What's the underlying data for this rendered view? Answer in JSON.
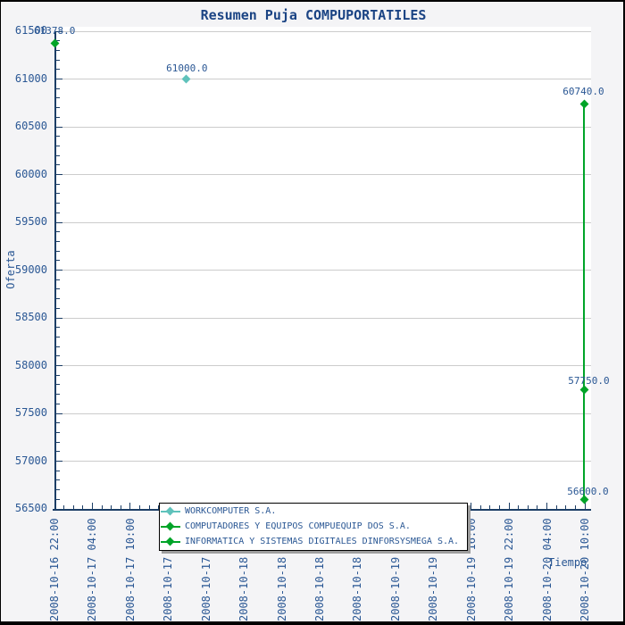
{
  "title": "Resumen Puja COMPUPORTATILES",
  "colors": {
    "navy_text": "#2a5794",
    "title_navy": "#1b4484",
    "axis_line": "#1c3e66",
    "gridline": "#cccccc",
    "plot_bg": "#ffffff",
    "page_bg": "#f4f4f6",
    "teal_series": "#5fc2bb",
    "green_series": "#00a428",
    "legend_shadow": "#9e9e9e"
  },
  "axes": {
    "y": {
      "label": "Oferta",
      "min": 56500,
      "max": 61500,
      "major_step": 500,
      "minor_step": 100,
      "ticks": [
        61500,
        61000,
        60500,
        60000,
        59500,
        59000,
        58500,
        58000,
        57500,
        57000,
        56500
      ]
    },
    "x": {
      "label": "Tiempo",
      "major_step_hours": 6,
      "minor_per_major": 4,
      "ticks": [
        "2008-10-16 22:00",
        "2008-10-17 04:00",
        "2008-10-17 10:00",
        "2008-10-17 16:00",
        "2008-10-17 22:00",
        "2008-10-18 04:00",
        "2008-10-18 10:00",
        "2008-10-18 16:00",
        "2008-10-18 22:00",
        "2008-10-19 04:00",
        "2008-10-19 10:00",
        "2008-10-19 16:00",
        "2008-10-19 22:00",
        "2008-10-20 04:00",
        "2008-10-20 10:00"
      ]
    }
  },
  "legend": {
    "items": [
      {
        "label": "WORKCOMPUTER S.A.",
        "color": "#5fc2bb"
      },
      {
        "label": "COMPUTADORES Y EQUIPOS COMPUEQUIP DOS S.A.",
        "color": "#00a428"
      },
      {
        "label": "INFORMATICA Y SISTEMAS DIGITALES DINFORSYSMEGA S.A.",
        "color": "#00a428"
      }
    ]
  },
  "chart_data": {
    "type": "scatter",
    "title": "Resumen Puja COMPUPORTATILES",
    "xlabel": "Tiempo",
    "ylabel": "Oferta",
    "ylim": [
      56500,
      61500
    ],
    "x_range": [
      "2008-10-16 22:00",
      "2008-10-20 10:00"
    ],
    "grid": "horizontal-only",
    "legend_position": "bottom",
    "series": [
      {
        "name": "WORKCOMPUTER S.A.",
        "color": "#5fc2bb",
        "connected": false,
        "points": [
          {
            "time_approx": "2008-10-17 18:45",
            "hours_from_start": 20.8,
            "value": 61000.0,
            "label": "61000.0",
            "label_dx": -22,
            "label_dy": -18
          }
        ]
      },
      {
        "name": "COMPUTADORES Y EQUIPOS COMPUEQUIP DOS S.A.",
        "color": "#00a428",
        "connected": false,
        "points": [
          {
            "time_approx": "2008-10-16 22:00",
            "hours_from_start": 0,
            "value": 61378.0,
            "label": "61378.0",
            "label_dx": -23,
            "label_dy": -19
          }
        ]
      },
      {
        "name": "INFORMATICA Y SISTEMAS DIGITALES DINFORSYSMEGA S.A.",
        "color": "#00a428",
        "connected": true,
        "points": [
          {
            "time_approx": "2008-10-20 09:50",
            "hours_from_start": 83.9,
            "value": 60740.0,
            "label": "60740.0",
            "label_dx": -24,
            "label_dy": -19
          },
          {
            "time_approx": "2008-10-20 09:50",
            "hours_from_start": 83.9,
            "value": 57750.0,
            "label": "57750.0",
            "label_dx": -18,
            "label_dy": -15
          },
          {
            "time_approx": "2008-10-20 09:50",
            "hours_from_start": 83.9,
            "value": 56600.0,
            "label": "56600.0",
            "label_dx": -19,
            "label_dy": -14
          }
        ]
      }
    ]
  }
}
